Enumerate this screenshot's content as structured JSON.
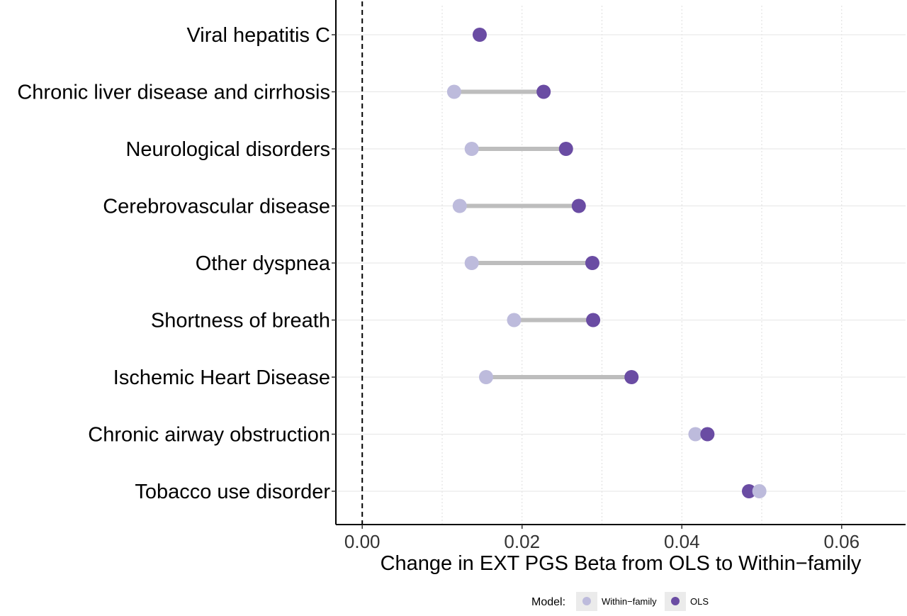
{
  "chart_data": {
    "type": "dumbbell",
    "title": "",
    "xlabel": "Change in EXT PGS Beta from OLS to Within−family",
    "ylabel": "",
    "xlim": [
      -0.0033,
      0.068
    ],
    "x_ticks": [
      0.0,
      0.02,
      0.04,
      0.06
    ],
    "x_tick_labels": [
      "0.00",
      "0.02",
      "0.04",
      "0.06"
    ],
    "grid": "vertical dotted major gridlines, horizontal light row guides",
    "reference_line": {
      "x": 0,
      "style": "dashed"
    },
    "categories": [
      "Viral hepatitis C",
      "Chronic liver disease and cirrhosis",
      "Neurological disorders",
      "Cerebrovascular disease",
      "Other dyspnea",
      "Shortness of breath",
      "Ischemic Heart Disease",
      "Chronic airway obstruction",
      "Tobacco use disorder"
    ],
    "series": [
      {
        "name": "Within−family",
        "color": "#bdbbdc",
        "values": [
          null,
          0.0115,
          0.0137,
          0.0122,
          0.0137,
          0.019,
          0.0155,
          0.0417,
          0.0497
        ]
      },
      {
        "name": "OLS",
        "color": "#6a4ca3",
        "values": [
          0.0147,
          0.0227,
          0.0255,
          0.0271,
          0.0288,
          0.0289,
          0.0337,
          0.0432,
          0.0484
        ]
      }
    ],
    "legend": {
      "title": "Model:",
      "position": "bottom"
    }
  }
}
